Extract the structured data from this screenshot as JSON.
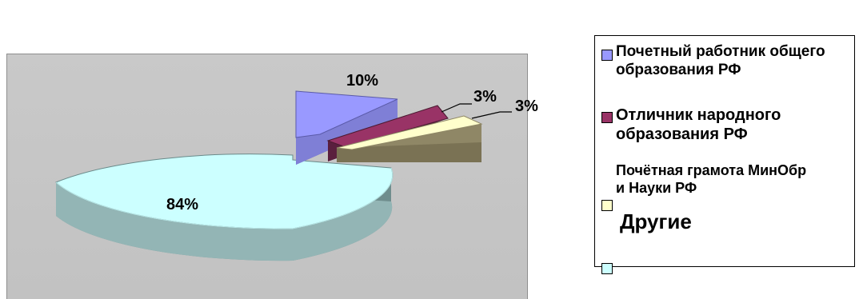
{
  "chart_data": {
    "type": "pie",
    "title": "",
    "slices": [
      {
        "label": "10%",
        "value": 10,
        "color": "#9999ff"
      },
      {
        "label": "3%",
        "value": 3,
        "color": "#993366"
      },
      {
        "label": "3%",
        "value": 3,
        "color": "#ffffcc"
      },
      {
        "label": "84%",
        "value": 84,
        "color": "#ccffff"
      }
    ],
    "legend": {
      "placement": "right",
      "entries": [
        {
          "line1": "Почетный работник общего",
          "line2": "образования РФ",
          "color": "#9999ff"
        },
        {
          "line1": "Отличник народного",
          "line2": "образования РФ",
          "color": "#993366"
        },
        {
          "line1": "Почётная грамота МинОбр",
          "line2": "и Науки РФ",
          "color": "#ffffcc"
        },
        {
          "line1": "Другие",
          "line2": "",
          "color": "#ccffff"
        }
      ]
    }
  }
}
